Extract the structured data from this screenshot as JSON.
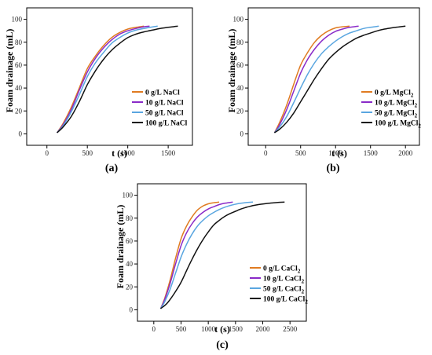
{
  "figure": {
    "background": "#ffffff"
  },
  "chart_data": [
    {
      "type": "line",
      "panel_label": "(a)",
      "xlabel": "t (s)",
      "ylabel": "Foam drainage (mL)",
      "xlim": [
        -250,
        1800
      ],
      "ylim": [
        -10,
        110
      ],
      "xticks": [
        "0",
        "500",
        "1000",
        "1500"
      ],
      "xtick_values": [
        0,
        500,
        1000,
        1500
      ],
      "yticks": [
        "0",
        "20",
        "40",
        "60",
        "80",
        "100"
      ],
      "ytick_values": [
        0,
        20,
        40,
        60,
        80,
        100
      ],
      "grid": false,
      "legend_position": "bottom-right",
      "series": [
        {
          "name": "0 g/L NaCl",
          "legend_base": "0 g/L NaCl",
          "legend_sub": "",
          "color": "#e07b21",
          "x": [
            125,
            200,
            300,
            400,
            500,
            600,
            700,
            800,
            900,
            1000,
            1100,
            1200
          ],
          "y": [
            1,
            9,
            23,
            40,
            57,
            68,
            77,
            84,
            88.5,
            91.5,
            93,
            94
          ]
        },
        {
          "name": "10 g/L NaCl",
          "legend_base": "10 g/L NaCl",
          "legend_sub": "",
          "color": "#8a2bc8",
          "x": [
            125,
            200,
            300,
            400,
            500,
            600,
            700,
            800,
            900,
            1000,
            1100,
            1200,
            1270
          ],
          "y": [
            1,
            8,
            21,
            38,
            54,
            66,
            75,
            82,
            87,
            90,
            92,
            93.5,
            94
          ]
        },
        {
          "name": "50 g/L NaCl",
          "legend_base": "50 g/L NaCl",
          "legend_sub": "",
          "color": "#5aa6e0",
          "x": [
            125,
            200,
            300,
            400,
            500,
            600,
            700,
            800,
            900,
            1000,
            1100,
            1200,
            1300,
            1370
          ],
          "y": [
            1,
            7,
            19,
            34,
            50,
            62,
            71,
            79,
            84,
            88,
            90.5,
            92,
            93.3,
            94
          ]
        },
        {
          "name": "100 g/L NaCl",
          "legend_base": "100 g/L NaCl",
          "legend_sub": "",
          "color": "#111111",
          "x": [
            125,
            200,
            300,
            400,
            500,
            600,
            700,
            800,
            900,
            1000,
            1100,
            1200,
            1300,
            1400,
            1500,
            1620
          ],
          "y": [
            1,
            6,
            15,
            28,
            43,
            55,
            65,
            73,
            79,
            84,
            87,
            89,
            90.5,
            92,
            93,
            94
          ]
        }
      ]
    },
    {
      "type": "line",
      "panel_label": "(b)",
      "xlabel": "t (s)",
      "ylabel": "Foam drainage (mL)",
      "xlim": [
        -250,
        2200
      ],
      "ylim": [
        -10,
        110
      ],
      "xticks": [
        "0",
        "500",
        "1000",
        "1500",
        "2000"
      ],
      "xtick_values": [
        0,
        500,
        1000,
        1500,
        2000
      ],
      "yticks": [
        "0",
        "20",
        "40",
        "60",
        "80",
        "100"
      ],
      "ytick_values": [
        0,
        20,
        40,
        60,
        80,
        100
      ],
      "grid": false,
      "legend_position": "bottom-right",
      "series": [
        {
          "name": "0 g/L MgCl2",
          "legend_base": "0 g/L MgCl",
          "legend_sub": "2",
          "color": "#e07b21",
          "x": [
            125,
            200,
            300,
            400,
            500,
            600,
            700,
            800,
            900,
            1000,
            1100,
            1200
          ],
          "y": [
            1,
            10,
            25,
            43,
            60,
            71,
            80,
            86,
            90,
            92.5,
            93.5,
            94
          ]
        },
        {
          "name": "10 g/L MgCl2",
          "legend_base": "10 g/L MgCl",
          "legend_sub": "2",
          "color": "#8a2bc8",
          "x": [
            125,
            200,
            300,
            400,
            500,
            600,
            700,
            800,
            900,
            1000,
            1100,
            1200,
            1330
          ],
          "y": [
            1,
            8,
            21,
            37,
            53,
            65,
            74,
            81,
            86,
            89.5,
            91.5,
            93,
            94
          ]
        },
        {
          "name": "50 g/L MgCl2",
          "legend_base": "50 g/L MgCl",
          "legend_sub": "2",
          "color": "#5aa6e0",
          "x": [
            125,
            200,
            300,
            400,
            500,
            600,
            700,
            800,
            900,
            1000,
            1100,
            1200,
            1300,
            1400,
            1500,
            1620
          ],
          "y": [
            1,
            6,
            15,
            27,
            40,
            52,
            62,
            70,
            76,
            81,
            85,
            88,
            90,
            92,
            93,
            94
          ]
        },
        {
          "name": "100 g/L MgCl2",
          "legend_base": "100 g/L MgCl",
          "legend_sub": "2",
          "color": "#111111",
          "x": [
            125,
            200,
            300,
            400,
            500,
            600,
            700,
            800,
            900,
            1000,
            1100,
            1200,
            1300,
            1400,
            1500,
            1600,
            1700,
            1800,
            1900,
            2000
          ],
          "y": [
            1,
            4,
            10,
            18,
            28,
            38,
            48,
            57,
            65,
            71,
            76,
            80,
            83.5,
            86,
            88,
            90,
            91.5,
            92.5,
            93.3,
            94
          ]
        }
      ]
    },
    {
      "type": "line",
      "panel_label": "(c)",
      "xlabel": "t (s)",
      "ylabel": "Foam drainage (mL)",
      "xlim": [
        -300,
        2800
      ],
      "ylim": [
        -10,
        110
      ],
      "xticks": [
        "0",
        "500",
        "1000",
        "1500",
        "2000",
        "2500"
      ],
      "xtick_values": [
        0,
        500,
        1000,
        1500,
        2000,
        2500
      ],
      "yticks": [
        "0",
        "20",
        "40",
        "60",
        "80",
        "100"
      ],
      "ytick_values": [
        0,
        20,
        40,
        60,
        80,
        100
      ],
      "grid": false,
      "legend_position": "bottom-right",
      "series": [
        {
          "name": "0 g/L CaCl2",
          "legend_base": "0 g/L CaCl",
          "legend_sub": "2",
          "color": "#e07b21",
          "x": [
            125,
            200,
            300,
            400,
            500,
            600,
            700,
            800,
            900,
            1000,
            1100,
            1200
          ],
          "y": [
            1,
            10,
            26,
            45,
            62,
            73,
            81,
            87,
            90.5,
            92.5,
            93.5,
            94
          ]
        },
        {
          "name": "10 g/L CaCl2",
          "legend_base": "10 g/L CaCl",
          "legend_sub": "2",
          "color": "#8a2bc8",
          "x": [
            125,
            200,
            300,
            400,
            500,
            600,
            700,
            800,
            900,
            1000,
            1100,
            1200,
            1300,
            1450
          ],
          "y": [
            1,
            9,
            23,
            40,
            56,
            67,
            75,
            81,
            85,
            88,
            90,
            91.8,
            93,
            94
          ]
        },
        {
          "name": "50 g/L CaCl2",
          "legend_base": "50 g/L CaCl",
          "legend_sub": "2",
          "color": "#5aa6e0",
          "x": [
            125,
            200,
            300,
            400,
            500,
            600,
            700,
            800,
            900,
            1000,
            1100,
            1200,
            1300,
            1400,
            1500,
            1600,
            1700,
            1820
          ],
          "y": [
            1,
            7,
            18,
            32,
            46,
            57,
            66,
            73,
            78,
            82,
            85,
            87.5,
            89.5,
            91,
            92.2,
            93,
            93.6,
            94
          ]
        },
        {
          "name": "100 g/L CaCl2",
          "legend_base": "100 g/L CaCl",
          "legend_sub": "2",
          "color": "#111111",
          "x": [
            125,
            250,
            400,
            500,
            600,
            700,
            800,
            900,
            1000,
            1100,
            1200,
            1300,
            1400,
            1500,
            1600,
            1700,
            1800,
            1900,
            2000,
            2100,
            2200,
            2300,
            2400
          ],
          "y": [
            1,
            6,
            16,
            24,
            34,
            44,
            53,
            61,
            68,
            74,
            78,
            81.5,
            84,
            86,
            88,
            89.5,
            90.7,
            91.6,
            92.3,
            92.9,
            93.4,
            93.8,
            94
          ]
        }
      ]
    }
  ]
}
